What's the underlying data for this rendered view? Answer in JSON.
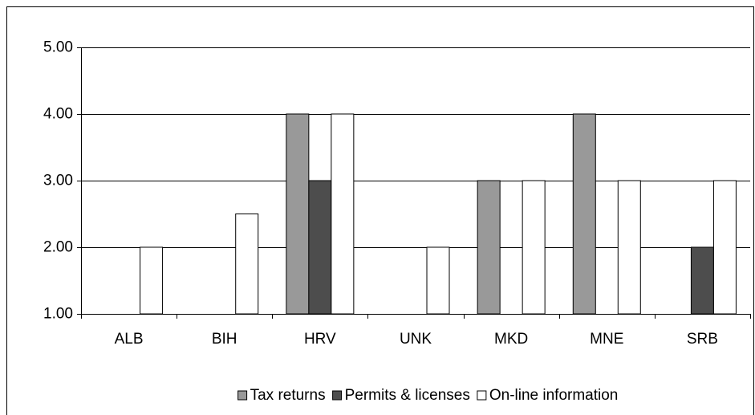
{
  "chart_data": {
    "type": "bar",
    "categories": [
      "ALB",
      "BIH",
      "HRV",
      "UNK",
      "MKD",
      "MNE",
      "SRB"
    ],
    "series": [
      {
        "name": "Tax returns",
        "color": "#999999",
        "values": [
          null,
          null,
          4,
          null,
          3,
          4,
          null
        ]
      },
      {
        "name": "Permits & licenses",
        "color": "#4d4d4d",
        "values": [
          null,
          null,
          3,
          null,
          null,
          null,
          2
        ]
      },
      {
        "name": "On-line information",
        "color": "#ffffff",
        "values": [
          2,
          2.5,
          4,
          2,
          3,
          3,
          3
        ]
      }
    ],
    "ylim": [
      1,
      5
    ],
    "yticks": [
      {
        "value": 1,
        "label": "1.00"
      },
      {
        "value": 2,
        "label": "2.00"
      },
      {
        "value": 3,
        "label": "3.00"
      },
      {
        "value": 4,
        "label": "4.00"
      },
      {
        "value": 5,
        "label": "5.00"
      }
    ],
    "grid": true,
    "legend": "bottom"
  }
}
